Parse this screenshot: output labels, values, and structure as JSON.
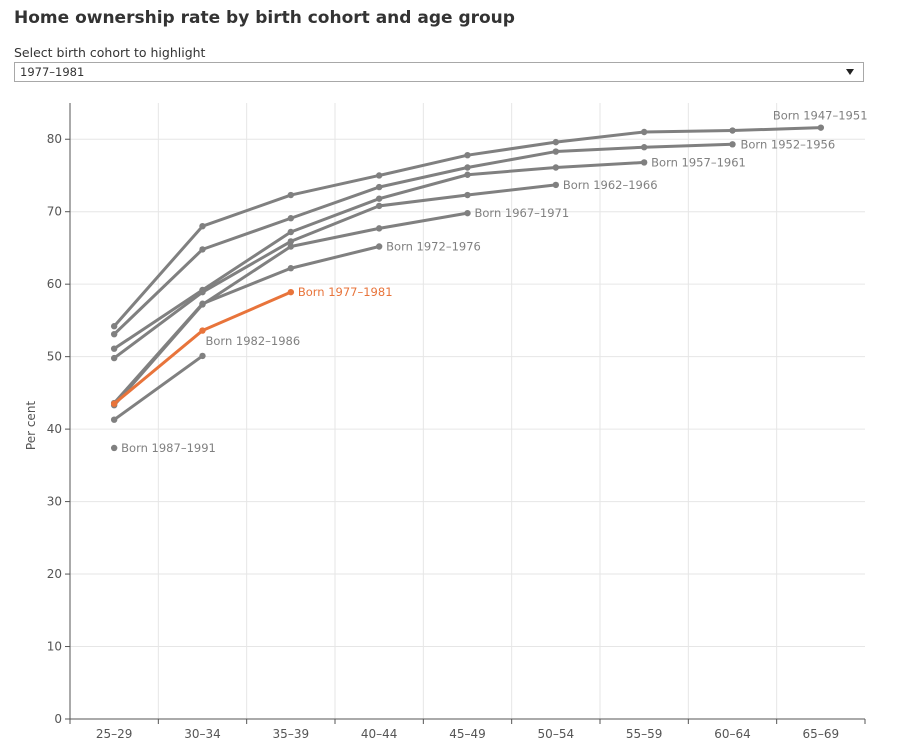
{
  "title": "Home ownership rate by birth cohort and age group",
  "filter": {
    "label": "Select birth cohort to highlight",
    "selected": "1977–1981"
  },
  "colors": {
    "base": "#808080",
    "highlight": "#e8743b",
    "grid": "#e6e6e6",
    "axis": "#555555"
  },
  "chart_data": {
    "type": "line",
    "title": "Home ownership rate by birth cohort and age group",
    "xlabel": "",
    "ylabel": "Per cent",
    "categories": [
      "25–29",
      "30–34",
      "35–39",
      "40–44",
      "45–49",
      "50–54",
      "55–59",
      "60–64",
      "65–69"
    ],
    "ylim": [
      0,
      85
    ],
    "yticks": [
      0,
      10,
      20,
      30,
      40,
      50,
      60,
      70,
      80
    ],
    "highlight": "Born 1977–1981",
    "series": [
      {
        "name": "Born 1947–1951",
        "values": [
          54.2,
          68.0,
          72.3,
          75.0,
          77.8,
          79.6,
          81.0,
          81.2,
          81.6
        ]
      },
      {
        "name": "Born 1952–1956",
        "values": [
          53.1,
          64.8,
          69.1,
          73.4,
          76.1,
          78.3,
          78.9,
          79.3,
          null
        ]
      },
      {
        "name": "Born 1957–1961",
        "values": [
          51.1,
          59.2,
          67.2,
          71.8,
          75.1,
          76.1,
          76.8,
          null,
          null
        ]
      },
      {
        "name": "Born 1962–1966",
        "values": [
          49.8,
          58.9,
          65.9,
          70.8,
          72.3,
          73.7,
          null,
          null,
          null
        ]
      },
      {
        "name": "Born 1967–1971",
        "values": [
          43.3,
          57.2,
          65.2,
          67.7,
          69.8,
          null,
          null,
          null,
          null
        ]
      },
      {
        "name": "Born 1972–1976",
        "values": [
          43.6,
          57.3,
          62.2,
          65.2,
          null,
          null,
          null,
          null,
          null
        ]
      },
      {
        "name": "Born 1977–1981",
        "values": [
          43.5,
          53.6,
          58.9,
          null,
          null,
          null,
          null,
          null,
          null
        ]
      },
      {
        "name": "Born 1982–1986",
        "values": [
          41.3,
          50.1,
          null,
          null,
          null,
          null,
          null,
          null,
          null
        ]
      },
      {
        "name": "Born 1987–1991",
        "values": [
          37.4,
          null,
          null,
          null,
          null,
          null,
          null,
          null,
          null
        ]
      }
    ]
  }
}
